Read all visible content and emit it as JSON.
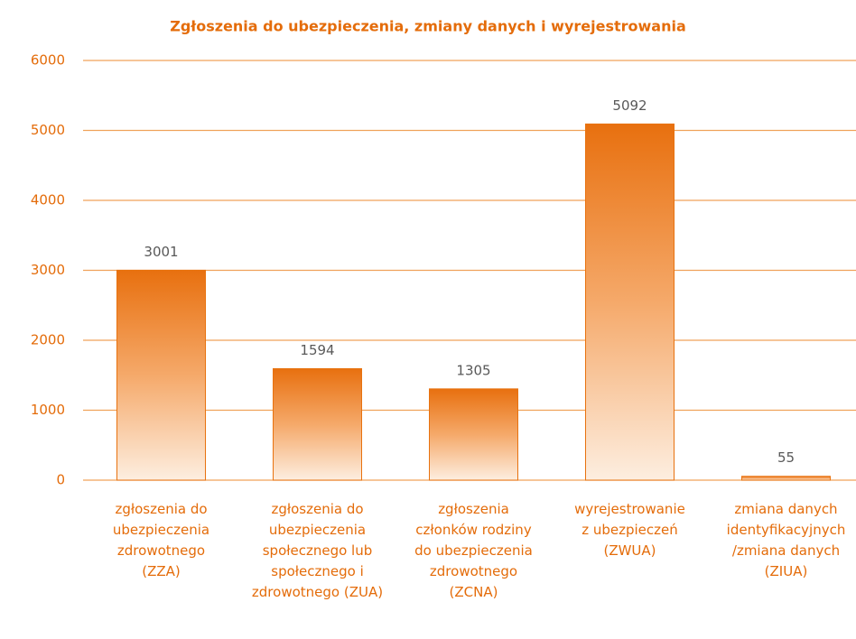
{
  "chart_data": {
    "type": "bar",
    "title": "Zgłoszenia do ubezpieczenia, zmiany danych i  wyrejestrowania",
    "categories": [
      "zgłoszenia do ubezpieczenia zdrowotnego (ZZA)",
      "zgłoszenia do ubezpieczenia społecznego lub społecznego i zdrowotnego (ZUA)",
      "zgłoszenia członków rodziny do ubezpieczenia zdrowotnego (ZCNA)",
      "wyrejestrowanie z ubezpieczeń (ZWUA)",
      "zmiana danych identyfikacyjnych /zmiana danych (ZIUA)"
    ],
    "values": [
      3001,
      1594,
      1305,
      5092,
      55
    ],
    "color": "#e8720f",
    "ylim": [
      0,
      6000
    ],
    "yticks": [
      0,
      1000,
      2000,
      3000,
      4000,
      5000,
      6000
    ],
    "grid": true
  }
}
